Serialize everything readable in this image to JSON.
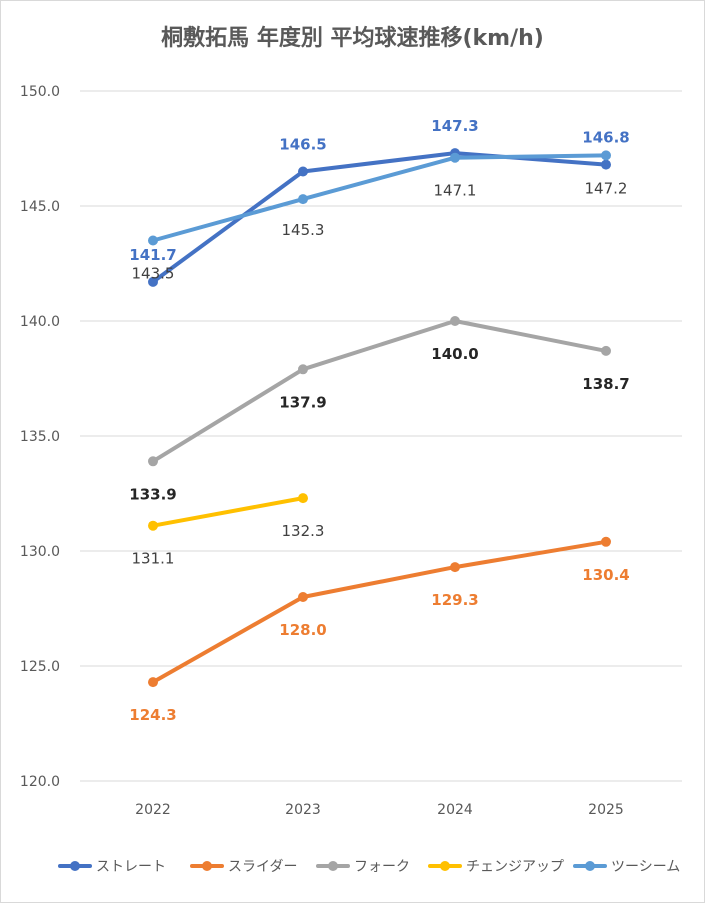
{
  "chart_data": {
    "type": "line",
    "title": "桐敷拓馬 年度別 平均球速推移(km/h)",
    "categories": [
      "2022",
      "2023",
      "2024",
      "2025"
    ],
    "ylim": [
      120.0,
      150.0
    ],
    "yticks": [
      "120.0",
      "125.0",
      "130.0",
      "135.0",
      "140.0",
      "145.0",
      "150.0"
    ],
    "grid": true,
    "legend_position": "bottom",
    "series": [
      {
        "name": "ストレート",
        "color": "#4472c4",
        "values": [
          141.7,
          146.5,
          147.3,
          146.8
        ],
        "labels": [
          "141.7",
          "146.5",
          "147.3",
          "146.8"
        ],
        "label_color": "#4472c4"
      },
      {
        "name": "スライダー",
        "color": "#ed7d31",
        "values": [
          124.3,
          128.0,
          129.3,
          130.4
        ],
        "labels": [
          "124.3",
          "128.0",
          "129.3",
          "130.4"
        ],
        "label_color": "#ed7d31"
      },
      {
        "name": "フォーク",
        "color": "#a5a5a5",
        "values": [
          133.9,
          137.9,
          140.0,
          138.7
        ],
        "labels": [
          "133.9",
          "137.9",
          "140.0",
          "138.7"
        ],
        "label_color": "#262626"
      },
      {
        "name": "チェンジアップ",
        "color": "#ffc000",
        "values": [
          131.1,
          132.3,
          null,
          null
        ],
        "labels": [
          "131.1",
          "132.3",
          null,
          null
        ],
        "label_color": "#404040"
      },
      {
        "name": "ツーシーム",
        "color": "#5b9bd5",
        "values": [
          143.5,
          145.3,
          147.1,
          147.2
        ],
        "labels": [
          "143.5",
          "145.3",
          "147.1",
          "147.2"
        ],
        "label_color": "#404040"
      }
    ]
  }
}
